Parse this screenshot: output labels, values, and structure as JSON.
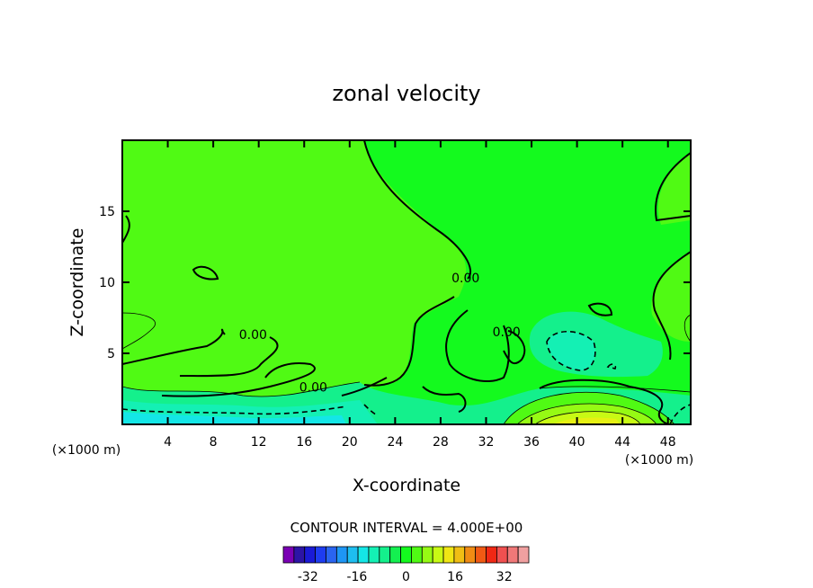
{
  "chart_data": {
    "type": "contour",
    "title": "zonal velocity",
    "xlabel": "X-coordinate",
    "ylabel": "Z-coordinate",
    "x_unit_left": "(×1000 m)",
    "x_unit_right": "(×1000 m)",
    "xlim": [
      0,
      50
    ],
    "ylim": [
      0,
      20
    ],
    "x_ticks": [
      4,
      8,
      12,
      16,
      20,
      24,
      28,
      32,
      36,
      40,
      44,
      48
    ],
    "y_ticks": [
      5,
      10,
      15
    ],
    "contour_labels": [
      {
        "text": "0.00",
        "x": 11.5,
        "z": 6.0
      },
      {
        "text": "0.00",
        "x": 16.8,
        "z": 2.3
      },
      {
        "text": "0.00",
        "x": 30.2,
        "z": 10.0
      },
      {
        "text": "0.00",
        "x": 33.8,
        "z": 6.2
      }
    ],
    "contour_interval_text": "CONTOUR INTERVAL = 4.000E+00",
    "colorbar": {
      "colors": [
        "#7a00b4",
        "#2c14a6",
        "#1a1ad6",
        "#1e3cf0",
        "#2a64f0",
        "#1e96f5",
        "#1ebef0",
        "#14e6e6",
        "#14f0b4",
        "#14f08c",
        "#14f050",
        "#14fa1e",
        "#50fa14",
        "#96fa14",
        "#c8fa14",
        "#f0e614",
        "#f0be14",
        "#f08c14",
        "#f05a14",
        "#f02814",
        "#f05050",
        "#f07878",
        "#f0a0a0"
      ],
      "tick_labels": [
        "-32",
        "-16",
        "0",
        "16",
        "32"
      ],
      "tick_values": [
        -32,
        -16,
        0,
        16,
        32
      ],
      "range": [
        -40,
        40
      ]
    }
  }
}
